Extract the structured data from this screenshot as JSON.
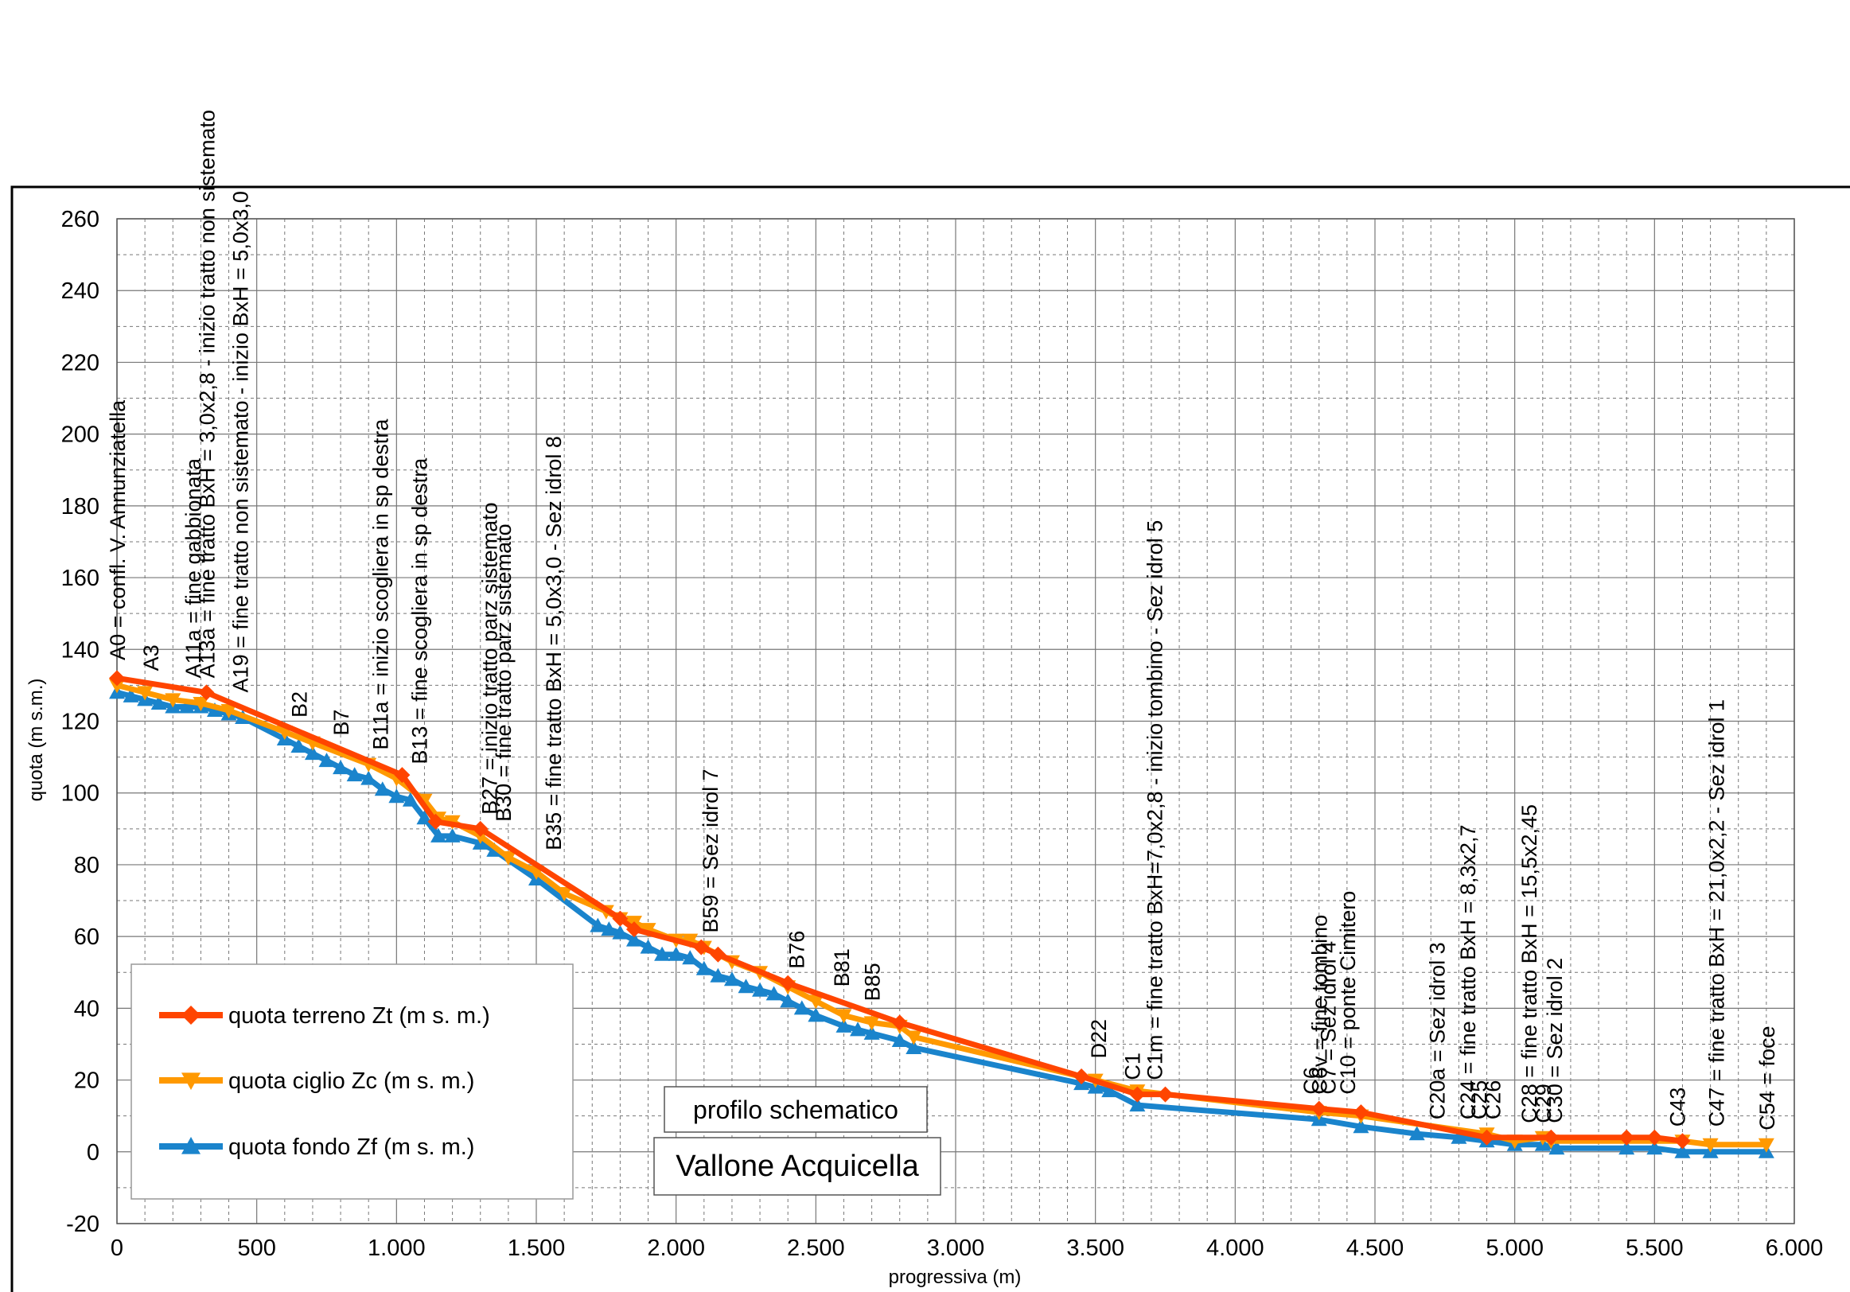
{
  "chart_data": {
    "type": "line",
    "title": "",
    "xlabel": "progressiva (m)",
    "ylabel": "quota (m s.m.)",
    "xlim": [
      0,
      6000
    ],
    "ylim": [
      -20,
      260
    ],
    "x_ticks": [
      0,
      500,
      1000,
      1500,
      2000,
      2500,
      3000,
      3500,
      4000,
      4500,
      5000,
      5500,
      6000
    ],
    "x_tick_labels": [
      "0",
      "500",
      "1.000",
      "1.500",
      "2.000",
      "2.500",
      "3.000",
      "3.500",
      "4.000",
      "4.500",
      "5.000",
      "5.500",
      "6.000"
    ],
    "y_ticks": [
      -20,
      0,
      20,
      40,
      60,
      80,
      100,
      120,
      140,
      160,
      180,
      200,
      220,
      240,
      260
    ],
    "y_tick_labels": [
      "-20",
      "0",
      "20",
      "40",
      "60",
      "80",
      "100",
      "120",
      "140",
      "160",
      "180",
      "200",
      "220",
      "240",
      "260"
    ],
    "grid": true,
    "legend_position": "bottom-left",
    "series": [
      {
        "name": "quota terreno Zt (m s. m.)",
        "color": "#ff4500",
        "marker": "diamond",
        "x": [
          0,
          320,
          1020,
          1140,
          1300,
          1800,
          1850,
          2090,
          2150,
          2400,
          2800,
          3450,
          3650,
          3750,
          4300,
          4450,
          4900,
          5130,
          5400,
          5500,
          5600
        ],
        "y": [
          132,
          128,
          105,
          92,
          90,
          65,
          62,
          57,
          55,
          47,
          36,
          21,
          16,
          16,
          12,
          11,
          4,
          4,
          4,
          4,
          3
        ]
      },
      {
        "name": "quota ciglio Zc (m s. m.)",
        "color": "#ff9900",
        "marker": "triangle-down",
        "x": [
          0,
          100,
          200,
          300,
          400,
          600,
          700,
          900,
          1000,
          1100,
          1150,
          1200,
          1300,
          1400,
          1500,
          1600,
          1750,
          1800,
          1850,
          1900,
          2000,
          2050,
          2100,
          2200,
          2300,
          2400,
          2500,
          2600,
          2700,
          2800,
          2850,
          3500,
          3650,
          4300,
          4450,
          4900,
          5000,
          5100,
          5130,
          5600,
          5700,
          5900
        ],
        "y": [
          130,
          128,
          126,
          125,
          123,
          117,
          114,
          108,
          104,
          98,
          93,
          92,
          88,
          82,
          78,
          72,
          67,
          65,
          64,
          62,
          59,
          59,
          57,
          53,
          50,
          46,
          42,
          38,
          36,
          35,
          32,
          20,
          17,
          11,
          10,
          5,
          3,
          4,
          3,
          3,
          2,
          2
        ]
      },
      {
        "name": "quota fondo Zf (m s. m.)",
        "color": "#1a84cc",
        "marker": "triangle-up",
        "x": [
          0,
          50,
          100,
          150,
          200,
          250,
          300,
          350,
          400,
          450,
          600,
          650,
          700,
          750,
          800,
          850,
          900,
          950,
          1000,
          1050,
          1100,
          1150,
          1200,
          1300,
          1350,
          1500,
          1720,
          1760,
          1800,
          1850,
          1900,
          1950,
          2000,
          2050,
          2100,
          2150,
          2200,
          2250,
          2300,
          2350,
          2400,
          2450,
          2500,
          2600,
          2650,
          2700,
          2800,
          2850,
          3450,
          3500,
          3550,
          3650,
          4300,
          4450,
          4650,
          4800,
          4900,
          5000,
          5100,
          5150,
          5400,
          5500,
          5600,
          5700,
          5900
        ],
        "y": [
          128,
          127,
          126,
          125,
          124,
          124,
          124,
          123,
          122,
          121,
          115,
          113,
          111,
          109,
          107,
          105,
          104,
          101,
          99,
          98,
          93,
          88,
          88,
          86,
          84,
          76,
          63,
          62,
          61,
          59,
          57,
          55,
          55,
          54,
          51,
          49,
          48,
          46,
          45,
          44,
          42,
          40,
          38,
          35,
          34,
          33,
          31,
          29,
          19,
          18,
          17,
          13,
          9,
          7,
          5,
          4,
          3,
          2,
          2,
          1,
          1,
          1,
          0,
          0,
          0
        ]
      }
    ],
    "annotations": [
      {
        "x": 0,
        "y": 133,
        "text": "A0 = confl. V. Annunziatella"
      },
      {
        "x": 120,
        "y": 130,
        "text": "A3"
      },
      {
        "x": 270,
        "y": 128,
        "text": "A11a = fine gabbionata"
      },
      {
        "x": 320,
        "y": 128,
        "text": "A13a = fine tratto BxH = 3,0x2,8 - inizio tratto non sistemato"
      },
      {
        "x": 440,
        "y": 124,
        "text": "A19 = fine tratto non sistemato - inizio BxH = 5,0x3,0"
      },
      {
        "x": 650,
        "y": 117,
        "text": "B2"
      },
      {
        "x": 800,
        "y": 112,
        "text": "B7"
      },
      {
        "x": 940,
        "y": 108,
        "text": "B11a = inizio scogliera in sp destra"
      },
      {
        "x": 1080,
        "y": 104,
        "text": "B13 = fine scogliera in sp destra"
      },
      {
        "x": 1330,
        "y": 90,
        "text": "B27 = inizio tratto parz sistemato"
      },
      {
        "x": 1380,
        "y": 88,
        "text": "B30 = fine tratto parz sistemato"
      },
      {
        "x": 1560,
        "y": 80,
        "text": "B35 = fine tratto BxH = 5,0x3,0 - Sez idrol 8"
      },
      {
        "x": 2120,
        "y": 57,
        "text": "B59 = Sez idrol 7"
      },
      {
        "x": 2430,
        "y": 47,
        "text": "B76"
      },
      {
        "x": 2590,
        "y": 42,
        "text": "B81"
      },
      {
        "x": 2700,
        "y": 38,
        "text": "B85"
      },
      {
        "x": 3510,
        "y": 22,
        "text": "D22"
      },
      {
        "x": 3630,
        "y": 16,
        "text": "C1"
      },
      {
        "x": 3710,
        "y": 16,
        "text": "C1m = fine tratto BxH=7,0x2,8 - inizio tombino - Sez idrol 5"
      },
      {
        "x": 4270,
        "y": 12,
        "text": "C6"
      },
      {
        "x": 4300,
        "y": 12,
        "text": "C6v = fine tombino"
      },
      {
        "x": 4330,
        "y": 12,
        "text": "C7 = Sez idrol 4"
      },
      {
        "x": 4400,
        "y": 12,
        "text": "C10 = ponte Cimitero"
      },
      {
        "x": 4720,
        "y": 5,
        "text": "C20a = Sez idrol 3"
      },
      {
        "x": 4830,
        "y": 5,
        "text": "C24 = fine tratto BxH = 8,3x2,7"
      },
      {
        "x": 4870,
        "y": 5,
        "text": "C25"
      },
      {
        "x": 4920,
        "y": 5,
        "text": "C26"
      },
      {
        "x": 5050,
        "y": 4,
        "text": "C28 = fine tratto BxH = 15,5x2,45"
      },
      {
        "x": 5100,
        "y": 4,
        "text": "C29"
      },
      {
        "x": 5140,
        "y": 4,
        "text": "C30 = Sez idrol 2"
      },
      {
        "x": 5580,
        "y": 3,
        "text": "C43"
      },
      {
        "x": 5720,
        "y": 3,
        "text": "C47 = fine tratto BxH = 21,0x2,2 - Sez idrol 1"
      },
      {
        "x": 5900,
        "y": 2,
        "text": "C54 = foce"
      }
    ],
    "text_boxes": {
      "subtitle": "profilo schematico",
      "name": "Vallone Acquicella"
    }
  }
}
